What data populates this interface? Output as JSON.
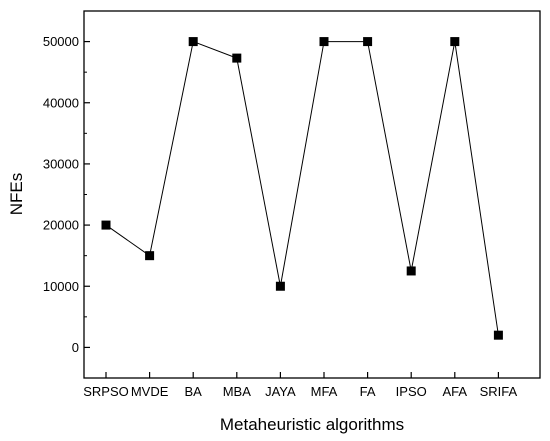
{
  "chart_data": {
    "type": "line",
    "xlabel": "Metaheuristic algorithms",
    "ylabel": "NFEs",
    "categories": [
      "SRPSO",
      "MVDE",
      "BA",
      "MBA",
      "JAYA",
      "MFA",
      "FA",
      "IPSO",
      "AFA",
      "SRIFA"
    ],
    "series": [
      {
        "values": [
          20000,
          15000,
          50000,
          47300,
          10000,
          50000,
          50000,
          12500,
          50000,
          2000
        ]
      }
    ],
    "ylim": [
      -5000,
      55000
    ],
    "yticks": [
      0,
      10000,
      20000,
      30000,
      40000,
      50000
    ],
    "ytick_labels": [
      "0",
      "10000",
      "20000",
      "30000",
      "40000",
      "50000"
    ],
    "grid": false,
    "marker": "square",
    "colors": {
      "line": "#000000",
      "marker": "#000000",
      "axis": "#000000"
    }
  }
}
